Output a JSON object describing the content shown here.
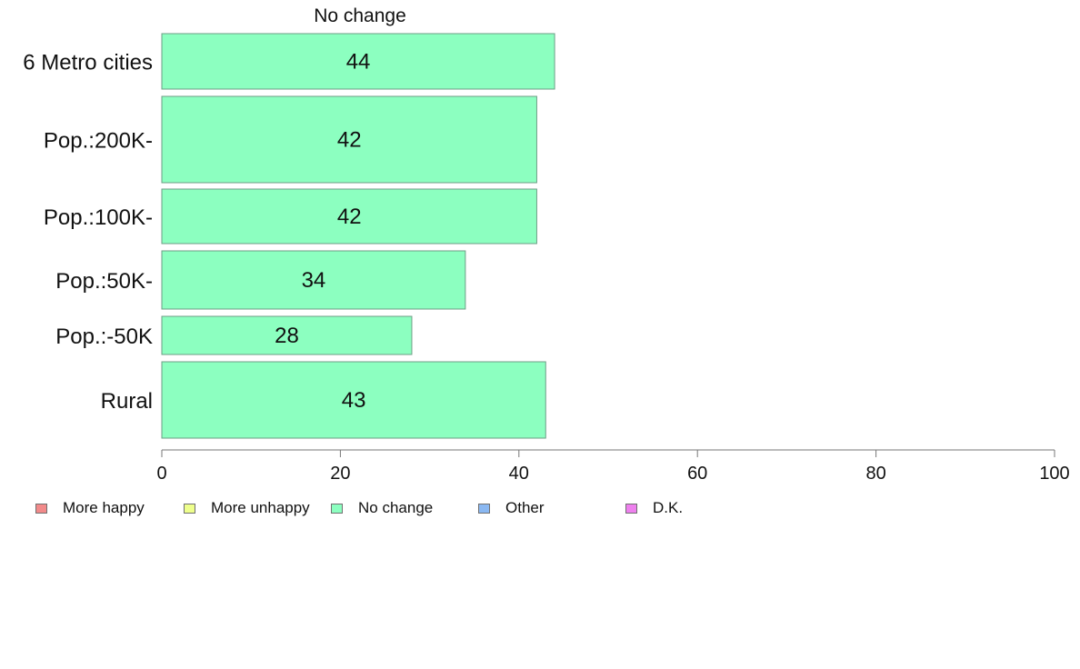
{
  "chart_data": {
    "type": "bar",
    "orientation": "horizontal",
    "title": "No change",
    "categories": [
      "6 Metro cities",
      "Pop.:200K-",
      "Pop.:100K-",
      "Pop.:50K-",
      "Pop.:-50K",
      "Rural"
    ],
    "series": [
      {
        "name": "No change",
        "values": [
          44,
          42,
          42,
          34,
          28,
          43
        ],
        "color": "#8cffc0"
      }
    ],
    "data_labels": [
      "44",
      "42",
      "42",
      "34",
      "28",
      "43"
    ],
    "xlim": [
      0,
      100
    ],
    "xticks": [
      0,
      20,
      40,
      60,
      80,
      100
    ],
    "xtick_labels": [
      "0",
      "20",
      "40",
      "60",
      "80",
      "100"
    ],
    "xlabel": "",
    "ylabel": "",
    "grid": false,
    "legend_position": "bottom",
    "legend": [
      {
        "label": "More happy",
        "color": "#f28a8a"
      },
      {
        "label": "More unhappy",
        "color": "#eeff8c"
      },
      {
        "label": "No change",
        "color": "#8cffc0"
      },
      {
        "label": "Other",
        "color": "#8ab8f2"
      },
      {
        "label": "D.K.",
        "color": "#ee80ee"
      }
    ]
  }
}
